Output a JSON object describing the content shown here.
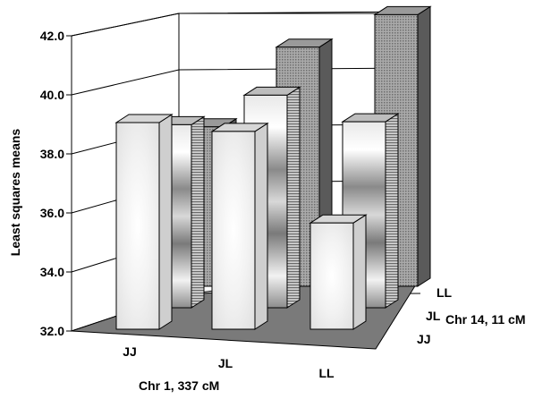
{
  "chart_data": {
    "type": "bar",
    "title": "",
    "ylabel": "Least squares means",
    "xlabel": "Chr 1, 337 cM",
    "zlabel": "Chr 14, 11 cM",
    "ylim": [
      32.0,
      42.0
    ],
    "yticks": [
      "32.0",
      "34.0",
      "36.0",
      "38.0",
      "40.0",
      "42.0"
    ],
    "categories": [
      "JJ",
      "JL",
      "LL"
    ],
    "depth_categories": [
      "JJ",
      "JL",
      "LL"
    ],
    "series": [
      {
        "values": [
          39.0,
          38.7,
          35.6
        ]
      },
      {
        "values": [
          38.2,
          39.2,
          38.3
        ]
      },
      {
        "values": [
          37.4,
          40.1,
          41.2
        ]
      }
    ],
    "colors": {
      "floor": "#7a7a7a",
      "front_face": "#f4f4f4",
      "stripe_light": "#f0f0f0",
      "stripe_dark": "#6a6a6a",
      "dark_top": "#9a9a9a"
    }
  }
}
